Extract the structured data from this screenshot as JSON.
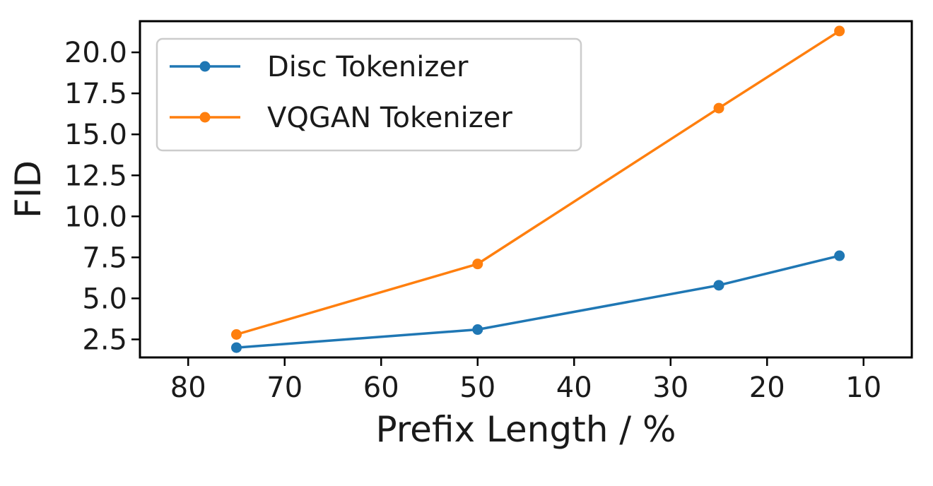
{
  "chart_data": {
    "type": "line",
    "title": "",
    "xlabel": "Prefix Length / %",
    "ylabel": "FID",
    "xlim": [
      85,
      5
    ],
    "ylim": [
      1.4,
      21.9
    ],
    "x_ticks": [
      80,
      70,
      60,
      50,
      40,
      30,
      20,
      10
    ],
    "y_ticks": [
      2.5,
      5.0,
      7.5,
      10.0,
      12.5,
      15.0,
      17.5,
      20.0
    ],
    "x_tick_labels": [
      "80",
      "70",
      "60",
      "50",
      "40",
      "30",
      "20",
      "10"
    ],
    "y_tick_labels": [
      "2.5",
      "5.0",
      "7.5",
      "10.0",
      "12.5",
      "15.0",
      "17.5",
      "20.0"
    ],
    "x_axis_reversed": true,
    "grid": false,
    "legend_position": "top-left",
    "series": [
      {
        "name": "Disc Tokenizer",
        "color": "#1f77b4",
        "x": [
          75,
          50,
          25,
          12.5
        ],
        "values": [
          2.0,
          3.1,
          5.8,
          7.6
        ]
      },
      {
        "name": "VQGAN Tokenizer",
        "color": "#ff7f0e",
        "x": [
          75,
          50,
          25,
          12.5
        ],
        "values": [
          2.8,
          7.1,
          16.6,
          21.3
        ]
      }
    ]
  }
}
